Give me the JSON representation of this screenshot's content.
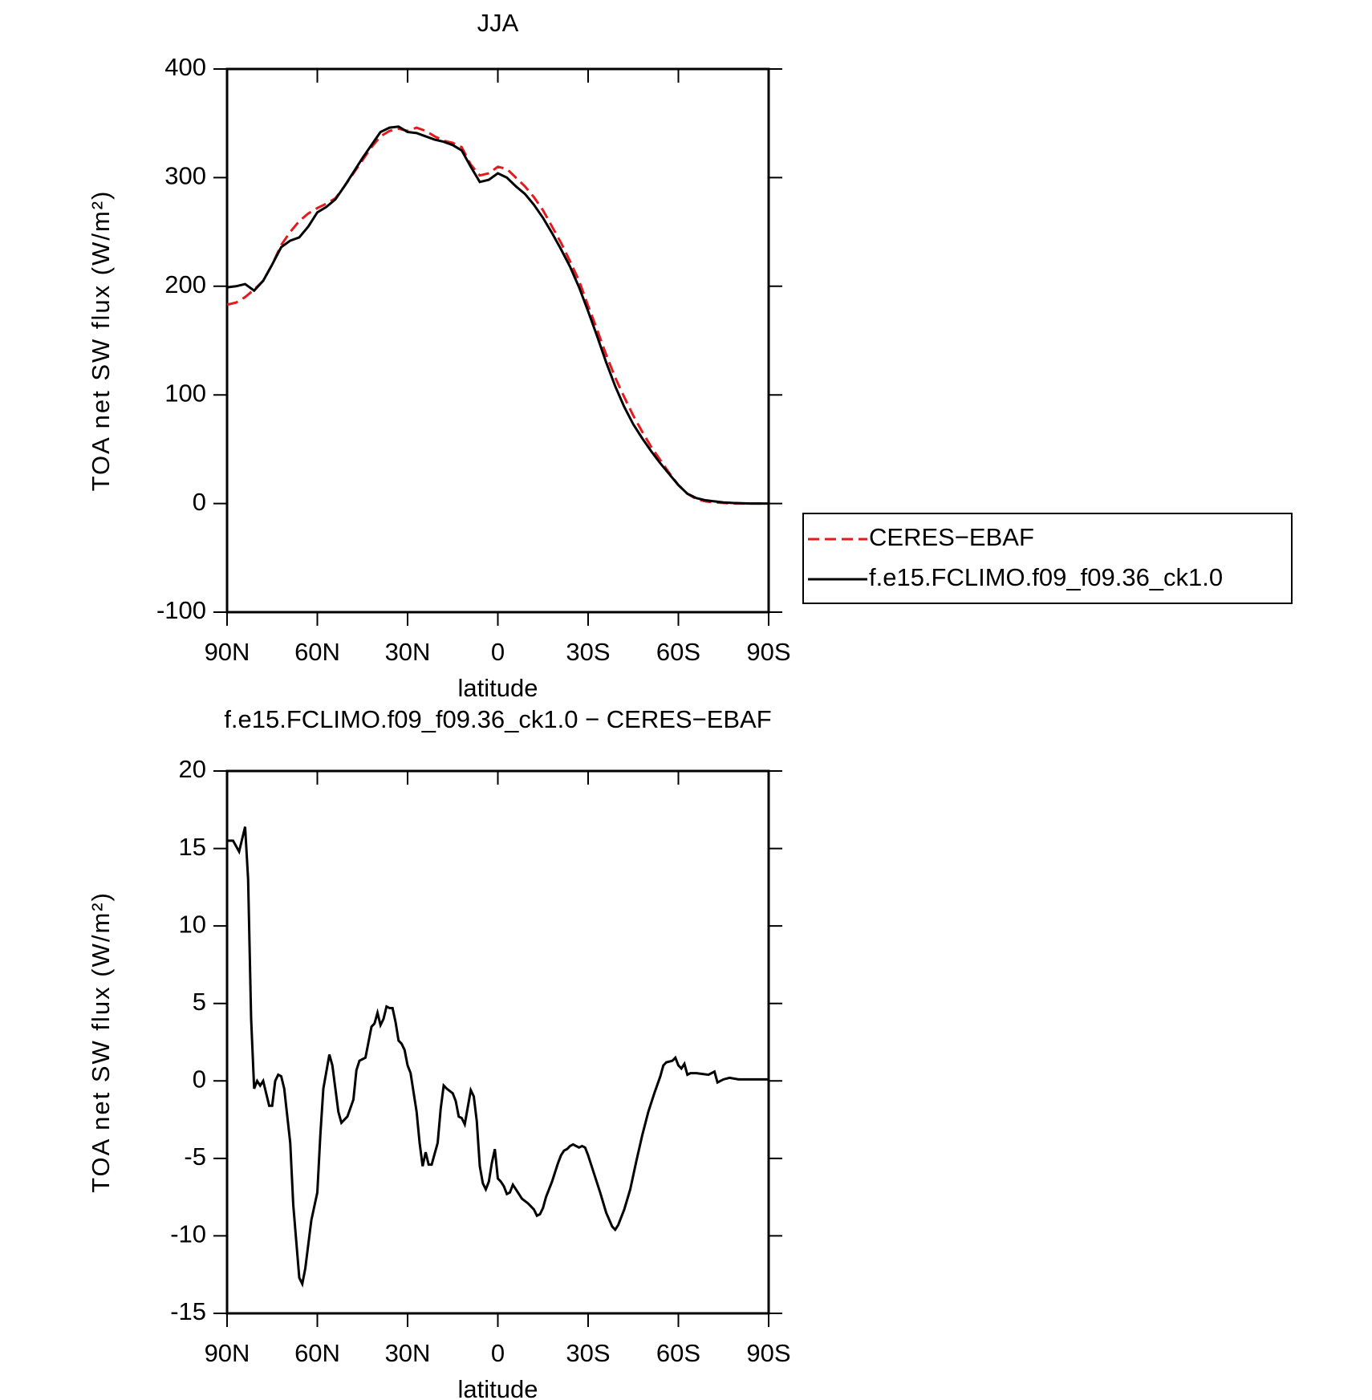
{
  "chart_data": [
    {
      "type": "line",
      "title": "JJA",
      "xlabel": "latitude",
      "ylabel": "TOA net SW flux (W/m²)",
      "x": [
        90,
        87,
        84,
        81,
        78,
        75,
        72,
        69,
        66,
        63,
        60,
        57,
        54,
        51,
        48,
        45,
        42,
        39,
        36,
        33,
        30,
        27,
        24,
        21,
        18,
        15,
        12,
        9,
        6,
        3,
        0,
        -3,
        -6,
        -9,
        -12,
        -15,
        -18,
        -21,
        -24,
        -27,
        -30,
        -33,
        -36,
        -39,
        -42,
        -45,
        -48,
        -51,
        -54,
        -57,
        -60,
        -63,
        -66,
        -69,
        -72,
        -75,
        -78,
        -81,
        -84,
        -87,
        -90
      ],
      "series": [
        {
          "name": "CERES−EBAF",
          "color": "#e41a1c",
          "line_style": "dashed",
          "values": [
            183,
            185,
            190,
            197,
            205,
            220,
            238,
            250,
            260,
            267,
            272,
            276,
            281,
            292,
            304,
            316,
            328,
            338,
            343,
            345,
            343,
            346,
            343,
            338,
            334,
            332,
            328,
            312,
            302,
            304,
            310,
            308,
            300,
            292,
            282,
            270,
            255,
            240,
            223,
            205,
            182,
            160,
            137,
            116,
            98,
            81,
            66,
            52,
            40,
            28,
            17,
            9,
            4,
            2,
            1,
            0.5,
            0,
            0,
            0,
            0,
            0
          ]
        },
        {
          "name": "f.e15.FCLIMO.f09_f09.36_ck1.0",
          "color": "#000000",
          "line_style": "solid",
          "values": [
            199,
            200,
            202,
            196,
            205,
            220,
            236,
            242,
            245,
            255,
            268,
            273,
            280,
            292,
            305,
            318,
            330,
            342,
            346,
            347,
            342,
            341,
            338,
            335,
            333,
            330,
            325,
            310,
            296,
            298,
            304,
            300,
            292,
            285,
            275,
            263,
            249,
            234,
            218,
            199,
            177,
            154,
            130,
            108,
            89,
            73,
            60,
            48,
            37,
            27,
            17,
            9,
            5,
            3,
            2,
            1,
            0.5,
            0.3,
            0,
            0,
            0
          ]
        }
      ],
      "xlim": [
        90,
        -90
      ],
      "xticks": [
        {
          "value": 90,
          "label": "90N"
        },
        {
          "value": 60,
          "label": "60N"
        },
        {
          "value": 30,
          "label": "30N"
        },
        0,
        {
          "value": -30,
          "label": "30S"
        },
        {
          "value": -60,
          "label": "60S"
        },
        {
          "value": -90,
          "label": "90S"
        }
      ],
      "ylim": [
        -100,
        400
      ],
      "yticks": [
        -100,
        0,
        100,
        200,
        300,
        400
      ],
      "legend": "right"
    },
    {
      "type": "line",
      "title": "f.e15.FCLIMO.f09_f09.36_ck1.0 − CERES−EBAF",
      "xlabel": "latitude",
      "ylabel": "TOA net SW flux (W/m²)",
      "x": [
        90,
        88,
        86,
        84,
        83,
        82,
        81,
        80,
        79,
        78,
        76,
        75,
        74,
        73,
        72,
        71,
        69,
        68,
        66,
        65,
        64,
        62,
        60,
        59,
        58,
        56,
        55,
        54,
        53,
        52,
        50,
        48,
        47,
        46,
        45,
        44,
        43,
        42,
        41,
        40,
        39,
        38,
        37,
        36,
        35,
        34,
        33,
        32,
        31,
        30,
        29,
        27,
        26,
        25,
        24,
        23,
        22,
        20,
        19,
        18,
        17,
        15,
        14,
        13,
        12,
        11,
        10,
        9,
        8,
        7,
        6,
        5,
        4,
        3,
        2,
        1,
        0,
        -1,
        -2,
        -3,
        -4,
        -5,
        -6,
        -8,
        -10,
        -11,
        -12,
        -13,
        -14,
        -15,
        -16,
        -18,
        -20,
        -21,
        -22,
        -23,
        -24,
        -25,
        -26,
        -27,
        -28,
        -29,
        -30,
        -32,
        -34,
        -36,
        -38,
        -39,
        -40,
        -42,
        -44,
        -46,
        -48,
        -50,
        -52,
        -54,
        -55,
        -56,
        -58,
        -59,
        -60,
        -61,
        -62,
        -63,
        -64,
        -66,
        -70,
        -72,
        -73,
        -75,
        -77,
        -80,
        -90
      ],
      "series": [
        {
          "color": "#000000",
          "line_style": "solid",
          "values": [
            15.5,
            15.5,
            14.8,
            16.4,
            13,
            4,
            -0.5,
            0,
            -0.3,
            0,
            -1.6,
            -1.6,
            0,
            0.4,
            0.3,
            -0.5,
            -4,
            -8,
            -12.7,
            -13.1,
            -12.1,
            -9,
            -7.2,
            -3.5,
            -0.5,
            1.7,
            1,
            -0.5,
            -2,
            -2.7,
            -2.3,
            -1.2,
            0.7,
            1.3,
            1.4,
            1.5,
            2.5,
            3.5,
            3.7,
            4.4,
            3.6,
            4,
            4.8,
            4.7,
            4.7,
            3.8,
            2.6,
            2.4,
            2,
            1,
            0.5,
            -2,
            -4,
            -5.5,
            -4.6,
            -5.4,
            -5.4,
            -4,
            -1.8,
            -0.3,
            -0.5,
            -0.8,
            -1.3,
            -2.3,
            -2.4,
            -2.8,
            -1.7,
            -0.6,
            -1,
            -2.6,
            -5.5,
            -6.6,
            -7,
            -6.5,
            -5.3,
            -4.4,
            -6.3,
            -6.5,
            -6.8,
            -7.3,
            -7.2,
            -6.7,
            -7,
            -7.6,
            -7.9,
            -8.1,
            -8.3,
            -8.7,
            -8.6,
            -8.2,
            -7.5,
            -6.5,
            -5.3,
            -4.8,
            -4.5,
            -4.4,
            -4.2,
            -4.1,
            -4.2,
            -4.3,
            -4.2,
            -4.3,
            -4.8,
            -6,
            -7.2,
            -8.5,
            -9.4,
            -9.6,
            -9.3,
            -8.3,
            -7,
            -5.2,
            -3.5,
            -2,
            -0.8,
            0.3,
            1,
            1.2,
            1.3,
            1.5,
            1,
            0.8,
            1.1,
            0.4,
            0.5,
            0.5,
            0.4,
            0.6,
            -0.1,
            0.1,
            0.2,
            0.1,
            0.1
          ]
        }
      ],
      "xlim": [
        90,
        -90
      ],
      "xticks": [
        {
          "value": 90,
          "label": "90N"
        },
        {
          "value": 60,
          "label": "60N"
        },
        {
          "value": 30,
          "label": "30N"
        },
        0,
        {
          "value": -30,
          "label": "30S"
        },
        {
          "value": -60,
          "label": "60S"
        },
        {
          "value": -90,
          "label": "90S"
        }
      ],
      "ylim": [
        -15,
        20
      ],
      "yticks": [
        -15,
        -10,
        -5,
        0,
        5,
        10,
        15,
        20
      ]
    }
  ]
}
